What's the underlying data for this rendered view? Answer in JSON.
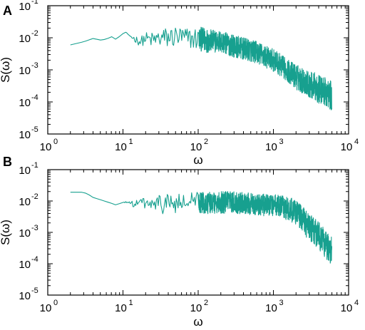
{
  "chart_data": [
    {
      "panel_label": "A",
      "type": "line",
      "xlabel": "ω",
      "ylabel": "S(ω)",
      "xscale": "log",
      "yscale": "log",
      "xlim": [
        1,
        10000
      ],
      "ylim": [
        1e-05,
        0.1
      ],
      "xticks": [
        {
          "base": "10",
          "exp": "0"
        },
        {
          "base": "10",
          "exp": "1"
        },
        {
          "base": "10",
          "exp": "2"
        },
        {
          "base": "10",
          "exp": "3"
        },
        {
          "base": "10",
          "exp": "4"
        }
      ],
      "yticks": [
        {
          "base": "10",
          "exp": "-5"
        },
        {
          "base": "10",
          "exp": "-4"
        },
        {
          "base": "10",
          "exp": "-3"
        },
        {
          "base": "10",
          "exp": "-2"
        },
        {
          "base": "10",
          "exp": "-1"
        }
      ],
      "grid": false,
      "color": "#17a08f",
      "series": [
        {
          "x": [
            2,
            3,
            4,
            5,
            6,
            7,
            8,
            9,
            10,
            11,
            12,
            14,
            17,
            20,
            25,
            30,
            40,
            50,
            70,
            100,
            120,
            150,
            200,
            300,
            400,
            500,
            600,
            700,
            800,
            1000,
            1200,
            1500,
            2000,
            2500,
            3000,
            3500,
            4000,
            5000,
            6000
          ],
          "y": [
            0.006,
            0.0075,
            0.0095,
            0.0085,
            0.009,
            0.011,
            0.009,
            0.011,
            0.0135,
            0.015,
            0.012,
            0.0095,
            0.0075,
            0.0095,
            0.0085,
            0.0095,
            0.01,
            0.011,
            0.0095,
            0.0095,
            0.0085,
            0.008,
            0.0075,
            0.0055,
            0.0045,
            0.004,
            0.0035,
            0.003,
            0.0025,
            0.002,
            0.0015,
            0.001,
            0.0006,
            0.00045,
            0.00035,
            0.0003,
            0.00025,
            0.0002,
            0.00015
          ],
          "noise_dex": [
            0,
            0,
            0,
            0,
            0,
            0,
            0,
            0,
            0,
            0,
            0,
            0.1,
            0.15,
            0.2,
            0.25,
            0.3,
            0.35,
            0.35,
            0.35,
            0.35,
            0.4,
            0.35,
            0.35,
            0.35,
            0.35,
            0.35,
            0.35,
            0.35,
            0.35,
            0.35,
            0.35,
            0.35,
            0.4,
            0.4,
            0.4,
            0.45,
            0.45,
            0.45,
            0.45
          ]
        }
      ]
    },
    {
      "panel_label": "B",
      "type": "line",
      "xlabel": "ω",
      "ylabel": "S(ω)",
      "xscale": "log",
      "yscale": "log",
      "xlim": [
        1,
        10000
      ],
      "ylim": [
        1e-05,
        0.1
      ],
      "xticks": [
        {
          "base": "10",
          "exp": "0"
        },
        {
          "base": "10",
          "exp": "1"
        },
        {
          "base": "10",
          "exp": "2"
        },
        {
          "base": "10",
          "exp": "3"
        },
        {
          "base": "10",
          "exp": "4"
        }
      ],
      "yticks": [
        {
          "base": "10",
          "exp": "-5"
        },
        {
          "base": "10",
          "exp": "-4"
        },
        {
          "base": "10",
          "exp": "-3"
        },
        {
          "base": "10",
          "exp": "-2"
        },
        {
          "base": "10",
          "exp": "-1"
        }
      ],
      "grid": false,
      "color": "#17a08f",
      "series": [
        {
          "x": [
            2,
            3,
            3.5,
            4,
            5,
            6,
            7,
            8,
            10,
            12,
            14,
            17,
            20,
            25,
            30,
            40,
            50,
            70,
            100,
            150,
            200,
            300,
            400,
            500,
            700,
            1000,
            1200,
            1500,
            2000,
            2500,
            3000,
            4000,
            5000,
            6000
          ],
          "y": [
            0.019,
            0.019,
            0.016,
            0.013,
            0.011,
            0.0095,
            0.0085,
            0.0075,
            0.009,
            0.0095,
            0.0075,
            0.009,
            0.0085,
            0.0075,
            0.008,
            0.0085,
            0.008,
            0.0085,
            0.009,
            0.0085,
            0.009,
            0.009,
            0.0085,
            0.008,
            0.0075,
            0.0075,
            0.007,
            0.006,
            0.0045,
            0.0025,
            0.0014,
            0.0008,
            0.0004,
            0.00025
          ],
          "noise_dex": [
            0,
            0,
            0,
            0,
            0,
            0,
            0,
            0,
            0,
            0.05,
            0.1,
            0.15,
            0.2,
            0.25,
            0.3,
            0.35,
            0.35,
            0.35,
            0.35,
            0.35,
            0.35,
            0.35,
            0.35,
            0.35,
            0.35,
            0.35,
            0.35,
            0.4,
            0.4,
            0.4,
            0.45,
            0.45,
            0.45,
            0.45
          ]
        }
      ]
    }
  ]
}
